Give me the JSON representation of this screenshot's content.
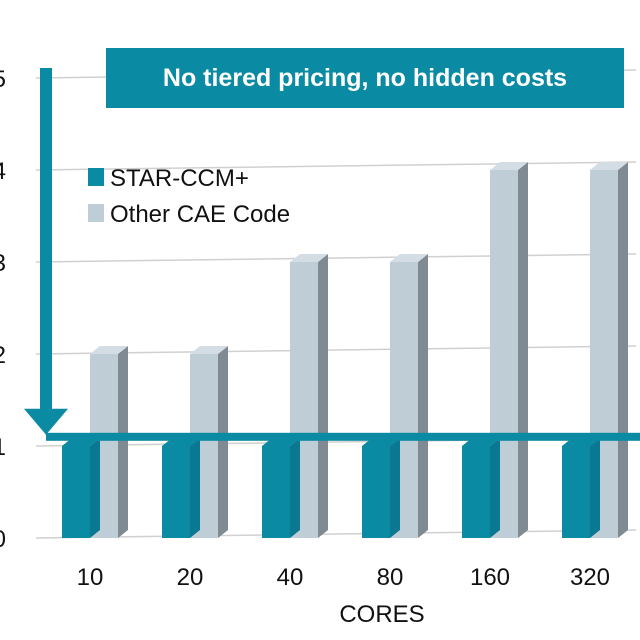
{
  "colors": {
    "accent": "#0a8aa3",
    "accent_dark": "#0a7890",
    "bar_light": "#bfcdd6",
    "bar_light_top": "#d3dde3",
    "bar_side": "#7f8a92",
    "grid": "#d0d0d0"
  },
  "callout": {
    "text": "No tiered pricing, no hidden costs"
  },
  "chart_data": {
    "type": "bar",
    "title": "",
    "xlabel": "CORES",
    "ylabel": "",
    "categories": [
      "10",
      "20",
      "40",
      "80",
      "160",
      "320"
    ],
    "series": [
      {
        "name": "STAR-CCM+",
        "values": [
          1,
          1,
          1,
          1,
          1,
          1
        ]
      },
      {
        "name": "Other CAE Code",
        "values": [
          2,
          2,
          3,
          3,
          4,
          4
        ]
      }
    ],
    "ylim": [
      0,
      5
    ],
    "yticks": [
      "0",
      "1",
      "2",
      "3",
      "4",
      "5"
    ],
    "bar_3d": true,
    "grid": true,
    "legend_position": "upper-left (inside plot)",
    "annotations": [
      {
        "text": "No tiered pricing, no hidden costs",
        "kind": "callout"
      }
    ],
    "reference_line": {
      "value": 1.1
    },
    "arrow": {
      "from": 5,
      "to": 1.1
    }
  }
}
